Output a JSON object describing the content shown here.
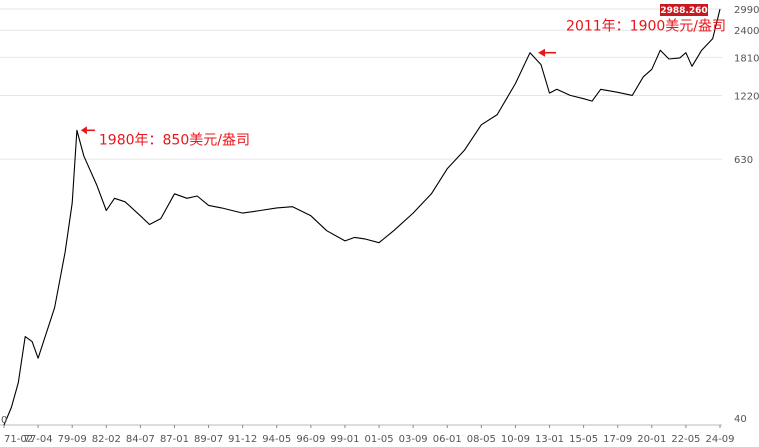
{
  "chart_data": {
    "type": "line",
    "title": "",
    "xlabel": "",
    "ylabel": "",
    "x_ticks": [
      "71-02",
      "77-04",
      "79-09",
      "82-02",
      "84-07",
      "87-01",
      "89-07",
      "91-12",
      "94-05",
      "96-09",
      "99-01",
      "01-05",
      "03-09",
      "06-01",
      "08-05",
      "10-09",
      "13-01",
      "15-05",
      "17-09",
      "20-01",
      "22-05",
      "24-09"
    ],
    "y_ticks": [
      40,
      630,
      1220,
      1810,
      2400,
      2990
    ],
    "ylim": [
      40,
      2990
    ],
    "grid": "horizontal",
    "series": [
      {
        "color": "#000000",
        "x": [
          "71-02",
          "72-06",
          "73-09",
          "74-12",
          "76-03",
          "77-04",
          "78-06",
          "79-03",
          "79-09",
          "80-01",
          "80-07",
          "81-06",
          "82-02",
          "82-09",
          "83-06",
          "84-07",
          "85-03",
          "86-01",
          "87-01",
          "87-12",
          "88-09",
          "89-07",
          "90-06",
          "91-12",
          "93-03",
          "94-05",
          "95-06",
          "96-09",
          "97-10",
          "99-01",
          "99-09",
          "00-06",
          "01-05",
          "02-05",
          "03-09",
          "04-12",
          "06-01",
          "07-03",
          "08-05",
          "09-06",
          "10-09",
          "11-09",
          "12-06",
          "13-01",
          "13-07",
          "14-06",
          "15-05",
          "15-12",
          "16-07",
          "17-09",
          "18-09",
          "19-06",
          "20-01",
          "20-08",
          "21-03",
          "21-12",
          "22-05",
          "22-10",
          "23-06",
          "24-03",
          "24-09"
        ],
        "values": [
          40,
          48,
          62,
          100,
          95,
          80,
          135,
          240,
          400,
          850,
          650,
          480,
          370,
          420,
          405,
          350,
          320,
          340,
          440,
          420,
          430,
          390,
          380,
          360,
          370,
          380,
          385,
          350,
          300,
          270,
          280,
          275,
          265,
          300,
          360,
          440,
          570,
          690,
          900,
          1000,
          1380,
          1900,
          1680,
          1250,
          1300,
          1220,
          1180,
          1150,
          1300,
          1260,
          1220,
          1480,
          1600,
          1950,
          1780,
          1800,
          1900,
          1650,
          1950,
          2200,
          2988
        ]
      }
    ],
    "annotations": [
      {
        "text": "1980年：850美元/盎司",
        "x": "80-01",
        "y": 850
      },
      {
        "text": "2011年：1900美元/盎司",
        "x": "11-09",
        "y": 1900
      }
    ],
    "last_value_label": "2988.260",
    "start_marker": "0",
    "colors": {
      "line": "#000000",
      "annotation": "#e8161b",
      "last_label_bg": "#c8191f",
      "start_marker": "#1e9a3a",
      "grid": "#e6e6e6"
    }
  }
}
